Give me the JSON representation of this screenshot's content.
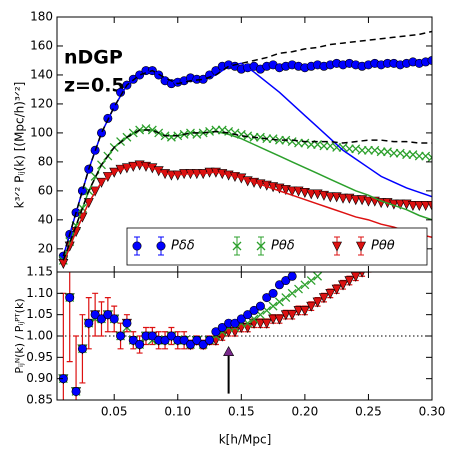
{
  "chart_data": [
    {
      "type": "scatter",
      "annotations": [
        "nDGP",
        "z=0.5"
      ],
      "ylabel": "k³ᐟ² Pᵢⱼ(k) [(Mpc/h)³ᐟ²]",
      "xlim": [
        0.005,
        0.3
      ],
      "ylim": [
        4,
        180
      ],
      "yticks": [
        20,
        40,
        60,
        80,
        100,
        120,
        140,
        160,
        180
      ],
      "x": [
        0.01,
        0.015,
        0.02,
        0.025,
        0.03,
        0.035,
        0.04,
        0.045,
        0.05,
        0.055,
        0.06,
        0.065,
        0.07,
        0.075,
        0.08,
        0.085,
        0.09,
        0.095,
        0.1,
        0.105,
        0.11,
        0.115,
        0.12,
        0.125,
        0.13,
        0.135,
        0.14,
        0.145,
        0.15,
        0.155,
        0.16,
        0.165,
        0.17,
        0.175,
        0.18,
        0.185,
        0.19,
        0.195,
        0.2,
        0.205,
        0.21,
        0.215,
        0.22,
        0.225,
        0.23,
        0.235,
        0.24,
        0.245,
        0.25,
        0.255,
        0.26,
        0.265,
        0.27,
        0.275,
        0.28,
        0.285,
        0.29,
        0.295,
        0.3
      ],
      "series": [
        {
          "name": "Pδδ",
          "color": "#0000ff",
          "marker": "circle",
          "values": [
            15,
            30,
            45,
            60,
            75,
            88,
            100,
            110,
            118,
            128,
            133,
            137,
            140,
            143,
            143,
            140,
            136,
            134,
            135,
            136,
            138,
            137,
            137,
            140,
            143,
            146,
            147,
            146,
            144,
            145,
            146,
            144,
            146,
            147,
            145,
            146,
            147,
            146,
            145,
            146,
            147,
            146,
            147,
            148,
            147,
            148,
            147,
            146,
            147,
            148,
            147,
            148,
            148,
            147,
            148,
            149,
            148,
            149,
            150
          ]
        },
        {
          "name": "Pθδ",
          "color": "#2ca02c",
          "marker": "x",
          "values": [
            12,
            25,
            36,
            48,
            60,
            70,
            78,
            84,
            90,
            94,
            97,
            100,
            102,
            103,
            102,
            100,
            98,
            97,
            98,
            99,
            100,
            99,
            100,
            101,
            102,
            102,
            101,
            100,
            99,
            98,
            97,
            97,
            96,
            96,
            95,
            95,
            94,
            93,
            93,
            92,
            92,
            91,
            91,
            90,
            90,
            89,
            89,
            88,
            88,
            88,
            87,
            87,
            86,
            86,
            85,
            85,
            84,
            84,
            83
          ]
        },
        {
          "name": "Pθθ",
          "color": "#dd1111",
          "marker": "triangle",
          "values": [
            10,
            22,
            32,
            42,
            52,
            60,
            66,
            70,
            73,
            75,
            76,
            77,
            78,
            77,
            76,
            74,
            72,
            71,
            71,
            72,
            72,
            72,
            72,
            73,
            73,
            72,
            71,
            70,
            69,
            67,
            66,
            65,
            64,
            63,
            62,
            61,
            60,
            60,
            59,
            58,
            58,
            57,
            56,
            56,
            55,
            55,
            54,
            54,
            53,
            53,
            52,
            52,
            51,
            51,
            51,
            50,
            50,
            50,
            50
          ]
        },
        {
          "color": "#0000ff",
          "style": "solid",
          "x": [
            0.01,
            0.02,
            0.03,
            0.04,
            0.05,
            0.06,
            0.07,
            0.08,
            0.09,
            0.1,
            0.11,
            0.12,
            0.13,
            0.14,
            0.15,
            0.16,
            0.17,
            0.18,
            0.19,
            0.2,
            0.21,
            0.22,
            0.23,
            0.24,
            0.25,
            0.26,
            0.27,
            0.28,
            0.29,
            0.3
          ],
          "values": [
            15,
            45,
            75,
            100,
            118,
            133,
            140,
            143,
            138,
            134,
            136,
            137,
            140,
            146,
            148,
            142,
            135,
            128,
            120,
            112,
            104,
            96,
            88,
            82,
            76,
            70,
            66,
            62,
            59,
            56
          ]
        },
        {
          "color": "#2ca02c",
          "style": "solid",
          "x": [
            0.01,
            0.02,
            0.03,
            0.04,
            0.05,
            0.06,
            0.07,
            0.08,
            0.09,
            0.1,
            0.11,
            0.12,
            0.13,
            0.14,
            0.15,
            0.16,
            0.17,
            0.18,
            0.19,
            0.2,
            0.21,
            0.22,
            0.23,
            0.24,
            0.25,
            0.26,
            0.27,
            0.28,
            0.29,
            0.3
          ],
          "values": [
            12,
            36,
            60,
            78,
            90,
            97,
            102,
            102,
            98,
            98,
            100,
            100,
            101,
            99,
            96,
            92,
            88,
            84,
            80,
            76,
            72,
            68,
            64,
            60,
            57,
            53,
            50,
            47,
            43,
            40
          ]
        },
        {
          "color": "#dd1111",
          "style": "solid",
          "x": [
            0.01,
            0.02,
            0.03,
            0.04,
            0.05,
            0.06,
            0.07,
            0.08,
            0.09,
            0.1,
            0.11,
            0.12,
            0.13,
            0.14,
            0.15,
            0.16,
            0.17,
            0.18,
            0.19,
            0.2,
            0.21,
            0.22,
            0.23,
            0.24,
            0.25,
            0.26,
            0.27,
            0.28,
            0.29,
            0.3
          ],
          "values": [
            10,
            32,
            52,
            66,
            73,
            76,
            78,
            76,
            72,
            71,
            72,
            72,
            73,
            71,
            69,
            66,
            63,
            60,
            57,
            54,
            51,
            48,
            45,
            42,
            40,
            37,
            35,
            32,
            30,
            28
          ]
        },
        {
          "color": "#000000",
          "style": "dashed",
          "x": [
            0.01,
            0.02,
            0.03,
            0.04,
            0.05,
            0.06,
            0.07,
            0.08,
            0.09,
            0.1,
            0.11,
            0.12,
            0.13,
            0.14,
            0.15,
            0.16,
            0.17,
            0.18,
            0.19,
            0.2,
            0.21,
            0.22,
            0.23,
            0.24,
            0.25,
            0.26,
            0.27,
            0.28,
            0.29,
            0.3
          ],
          "values": [
            15,
            45,
            75,
            100,
            118,
            133,
            140,
            143,
            138,
            134,
            136,
            137,
            140,
            146,
            148,
            150,
            152,
            155,
            156,
            158,
            159,
            161,
            162,
            163,
            164,
            165,
            166,
            167,
            168,
            170
          ]
        },
        {
          "color": "#000000",
          "style": "dashed",
          "x": [
            0.01,
            0.02,
            0.03,
            0.04,
            0.05,
            0.06,
            0.07,
            0.08,
            0.09,
            0.1,
            0.11,
            0.12,
            0.13,
            0.14,
            0.15,
            0.16,
            0.17,
            0.18,
            0.19,
            0.2,
            0.21,
            0.22,
            0.23,
            0.24,
            0.25,
            0.26,
            0.27,
            0.28,
            0.29,
            0.3
          ],
          "values": [
            12,
            36,
            60,
            78,
            90,
            97,
            102,
            102,
            98,
            98,
            100,
            100,
            101,
            100,
            98,
            97,
            96,
            95,
            95,
            94,
            94,
            94,
            93,
            94,
            95,
            95,
            94,
            94,
            93,
            93
          ]
        }
      ]
    },
    {
      "type": "scatter",
      "ylabel": "Pᵢⱼᴺ(k) / Pᵢⱼᴾᵀ(k)",
      "xlabel": "k[h/Mpc]",
      "xlim": [
        0.005,
        0.3
      ],
      "ylim": [
        0.85,
        1.15
      ],
      "xticks": [
        0.05,
        {
          "value": 0.1,
          "label": "0.10"
        },
        0.15,
        {
          "value": 0.2,
          "label": "0.20"
        },
        0.25,
        {
          "value": 0.3,
          "label": "0.30"
        }
      ],
      "yticks": [
        0.85,
        {
          "value": 0.9,
          "label": "0.90"
        },
        0.95,
        {
          "value": 1,
          "label": "1.00"
        },
        1.05,
        {
          "value": 1.1,
          "label": "1.10"
        },
        1.15
      ],
      "reference_line": 1,
      "arrow": {
        "x": 0.14,
        "from": 0.865,
        "to": 0.975
      },
      "series": [
        {
          "color": "#dd1111",
          "marker": "triangle",
          "x": [
            0.01,
            0.015,
            0.02,
            0.025,
            0.03,
            0.035,
            0.04,
            0.045,
            0.05,
            0.055,
            0.06,
            0.065,
            0.07,
            0.075,
            0.08,
            0.085,
            0.09,
            0.095,
            0.1,
            0.105,
            0.11,
            0.115,
            0.12,
            0.125,
            0.13,
            0.135,
            0.14,
            0.145,
            0.15,
            0.155,
            0.16,
            0.165,
            0.17,
            0.175,
            0.18,
            0.185,
            0.19,
            0.195,
            0.2,
            0.205,
            0.21,
            0.215,
            0.22,
            0.225,
            0.23,
            0.235,
            0.24,
            0.245,
            0.25
          ],
          "values": [
            0.9,
            1.09,
            0.87,
            0.97,
            1.03,
            1.05,
            1.04,
            1.05,
            1.04,
            1,
            1.03,
            0.99,
            0.98,
            1,
            1,
            0.99,
            0.99,
            1,
            0.99,
            0.99,
            0.98,
            0.99,
            0.98,
            0.99,
            0.99,
            1,
            1.01,
            1.01,
            1.02,
            1.02,
            1.03,
            1.03,
            1.03,
            1.04,
            1.04,
            1.05,
            1.05,
            1.06,
            1.06,
            1.07,
            1.08,
            1.09,
            1.1,
            1.11,
            1.12,
            1.13,
            1.14,
            1.15,
            1.16
          ],
          "errors": [
            0.2,
            0.15,
            0.13,
            0.08,
            0.06,
            0.05,
            0.04,
            0.04,
            0.03,
            0.03,
            0.02,
            0.02,
            0.02,
            0.02,
            0.02,
            0.02,
            0.02,
            0.02,
            0.02,
            0.02,
            0.01,
            0.01,
            0.01,
            0.01,
            0.01,
            0.01,
            0.01,
            0.01,
            0.01,
            0.01,
            0.01,
            0.01,
            0.01,
            0.01,
            0.01,
            0.01,
            0.01,
            0.01,
            0.01,
            0.01,
            0.01,
            0.01,
            0.01,
            0.01,
            0.01,
            0.01,
            0.01,
            0.01,
            0.01
          ]
        },
        {
          "color": "#2ca02c",
          "marker": "x",
          "x": [
            0.01,
            0.015,
            0.02,
            0.025,
            0.03,
            0.035,
            0.04,
            0.045,
            0.05,
            0.055,
            0.06,
            0.065,
            0.07,
            0.075,
            0.08,
            0.085,
            0.09,
            0.095,
            0.1,
            0.105,
            0.11,
            0.115,
            0.12,
            0.125,
            0.13,
            0.135,
            0.14,
            0.145,
            0.15,
            0.155,
            0.16,
            0.165,
            0.17,
            0.175,
            0.18,
            0.185,
            0.19,
            0.195,
            0.2,
            0.205,
            0.21
          ],
          "values": [
            0.9,
            1.09,
            0.87,
            0.97,
            1.03,
            1.04,
            1.04,
            1.05,
            1.04,
            1,
            1.02,
            0.99,
            0.98,
            1,
            0.99,
            0.99,
            0.99,
            1,
            0.99,
            0.99,
            0.98,
            0.99,
            0.98,
            0.99,
            1,
            1.01,
            1.02,
            1.02,
            1.03,
            1.03,
            1.04,
            1.05,
            1.06,
            1.07,
            1.08,
            1.09,
            1.1,
            1.11,
            1.12,
            1.13,
            1.14
          ]
        },
        {
          "color": "#0000ff",
          "marker": "circle",
          "x": [
            0.01,
            0.015,
            0.02,
            0.025,
            0.03,
            0.035,
            0.04,
            0.045,
            0.05,
            0.055,
            0.06,
            0.065,
            0.07,
            0.075,
            0.08,
            0.085,
            0.09,
            0.095,
            0.1,
            0.105,
            0.11,
            0.115,
            0.12,
            0.125,
            0.13,
            0.135,
            0.14,
            0.145,
            0.15,
            0.155,
            0.16,
            0.165,
            0.17,
            0.175,
            0.18,
            0.185,
            0.19
          ],
          "values": [
            0.9,
            1.09,
            0.87,
            0.97,
            1.03,
            1.05,
            1.04,
            1.05,
            1.04,
            1,
            1.03,
            0.99,
            0.98,
            1,
            1,
            0.99,
            0.99,
            1,
            0.99,
            0.99,
            0.98,
            0.99,
            0.98,
            0.99,
            1.01,
            1.02,
            1.03,
            1.03,
            1.04,
            1.05,
            1.06,
            1.07,
            1.09,
            1.1,
            1.12,
            1.13,
            1.14
          ]
        }
      ]
    }
  ]
}
